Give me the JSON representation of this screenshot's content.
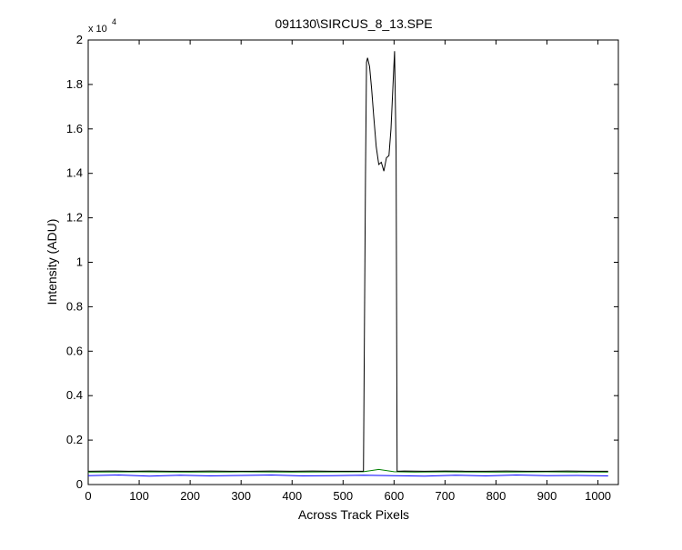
{
  "chart_data": {
    "type": "line",
    "title": "091130\\SIRCUS_8_13.SPE",
    "xlabel": "Across Track Pixels",
    "ylabel": "Intensity (ADU)",
    "y_multiplier": "x 10",
    "y_exponent": "4",
    "xlim": [
      0,
      1040
    ],
    "ylim": [
      0,
      2
    ],
    "xticks": [
      0,
      100,
      200,
      300,
      400,
      500,
      600,
      700,
      800,
      900,
      1000
    ],
    "yticks": [
      0,
      0.2,
      0.4,
      0.6,
      0.8,
      1,
      1.2,
      1.4,
      1.6,
      1.8,
      2
    ],
    "grid": false,
    "series": [
      {
        "color": "#0000ff",
        "x": [
          0,
          60,
          120,
          180,
          240,
          300,
          360,
          420,
          480,
          540,
          600,
          660,
          720,
          780,
          840,
          900,
          960,
          1020
        ],
        "values": [
          0.04,
          0.043,
          0.038,
          0.042,
          0.039,
          0.041,
          0.043,
          0.039,
          0.04,
          0.042,
          0.04,
          0.038,
          0.042,
          0.039,
          0.043,
          0.04,
          0.041,
          0.039
        ]
      },
      {
        "color": "#008000",
        "x": [
          0,
          100,
          200,
          300,
          400,
          500,
          540,
          570,
          600,
          640,
          700,
          800,
          900,
          1020
        ],
        "values": [
          0.056,
          0.057,
          0.056,
          0.057,
          0.056,
          0.057,
          0.058,
          0.068,
          0.058,
          0.056,
          0.057,
          0.056,
          0.057,
          0.056
        ]
      },
      {
        "color": "#000000",
        "x": [
          0,
          40,
          80,
          120,
          160,
          200,
          240,
          280,
          320,
          360,
          400,
          440,
          480,
          520,
          540,
          544,
          546,
          548,
          552,
          556,
          560,
          565,
          570,
          575,
          580,
          585,
          590,
          594,
          598,
          601,
          604,
          606,
          620,
          660,
          700,
          740,
          780,
          820,
          860,
          900,
          940,
          980,
          1020
        ],
        "values": [
          0.06,
          0.061,
          0.06,
          0.061,
          0.06,
          0.06,
          0.061,
          0.06,
          0.06,
          0.061,
          0.06,
          0.061,
          0.06,
          0.06,
          0.06,
          1.4,
          1.9,
          1.92,
          1.88,
          1.78,
          1.66,
          1.52,
          1.44,
          1.45,
          1.41,
          1.47,
          1.48,
          1.6,
          1.8,
          1.95,
          1.5,
          0.06,
          0.061,
          0.06,
          0.061,
          0.06,
          0.06,
          0.061,
          0.06,
          0.06,
          0.061,
          0.06,
          0.06
        ]
      }
    ]
  }
}
